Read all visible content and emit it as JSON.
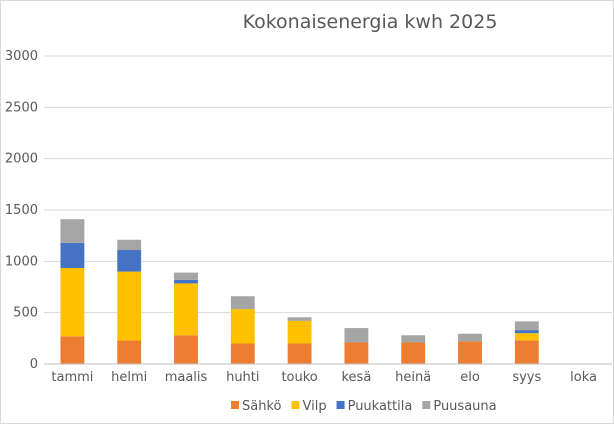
{
  "chart_data": {
    "type": "bar",
    "stacked": true,
    "title": "Kokonaisenergia kwh 2025",
    "xlabel": "",
    "ylabel": "",
    "ylim": [
      0,
      3000
    ],
    "yticks": [
      0,
      500,
      1000,
      1500,
      2000,
      2500,
      3000
    ],
    "grid": true,
    "legend_position": "bottom",
    "categories": [
      "tammi",
      "helmi",
      "maalis",
      "huhti",
      "touko",
      "kesä",
      "heinä",
      "elo",
      "syys",
      "loka"
    ],
    "series": [
      {
        "name": "Sähkö",
        "color": "#ed7d31",
        "values": [
          270,
          230,
          280,
          200,
          200,
          210,
          210,
          220,
          230,
          0
        ]
      },
      {
        "name": "Vilp",
        "color": "#ffc000",
        "values": [
          665,
          670,
          505,
          335,
          220,
          0,
          0,
          0,
          70,
          0
        ]
      },
      {
        "name": "Puukattila",
        "color": "#4472c4",
        "values": [
          245,
          210,
          35,
          0,
          0,
          0,
          0,
          0,
          30,
          0
        ]
      },
      {
        "name": "Puusauna",
        "color": "#a5a5a5",
        "values": [
          230,
          100,
          70,
          125,
          35,
          140,
          70,
          75,
          85,
          0
        ]
      }
    ]
  }
}
